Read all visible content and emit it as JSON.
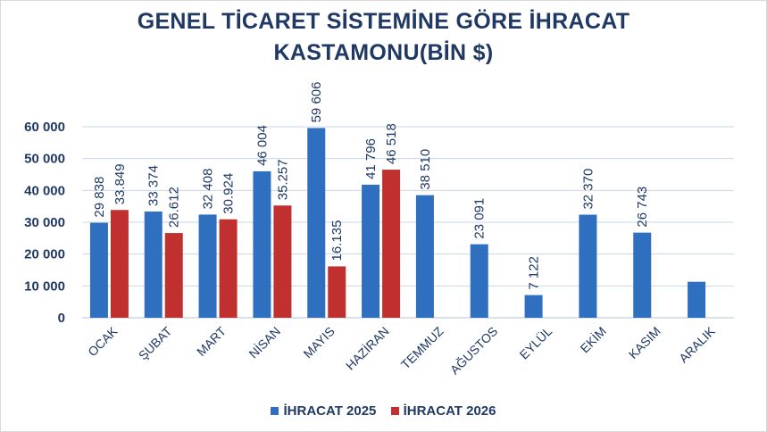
{
  "title_line1": "GENEL TİCARET SİSTEMİNE GÖRE İHRACAT",
  "title_line2": "KASTAMONU(BİN $)",
  "colors": {
    "series_2025": "#2f6fbf",
    "series_2026": "#c0302f",
    "text": "#1f3864",
    "grid": "#c9d6e6"
  },
  "chart_data": {
    "type": "bar",
    "title": "GENEL TİCARET SİSTEMİNE GÖRE İHRACAT KASTAMONU(BİN $)",
    "categories": [
      "OCAK",
      "ŞUBAT",
      "MART",
      "NİSAN",
      "MAYIS",
      "HAZİRAN",
      "TEMMUZ",
      "AĞUSTOS",
      "EYLÜL",
      "EKİM",
      "KASIM",
      "ARALIK"
    ],
    "series": [
      {
        "name": "İHRACAT 2025",
        "values": [
          29838,
          33374,
          32408,
          46004,
          59606,
          41796,
          38510,
          23091,
          7122,
          32370,
          26743,
          11300
        ],
        "labels": [
          "29 838",
          "33 374",
          "32 408",
          "46 004",
          "59 606",
          "41 796",
          "38 510",
          "23 091",
          "7 122",
          "32 370",
          "26 743",
          ""
        ]
      },
      {
        "name": "İHRACAT 2026",
        "values": [
          33849,
          26612,
          30924,
          35257,
          16135,
          46518,
          null,
          null,
          null,
          null,
          null,
          null
        ],
        "labels": [
          "33.849",
          "26.612",
          "30.924",
          "35.257",
          "16.135",
          "46 518",
          "",
          "",
          "",
          "",
          "",
          ""
        ]
      }
    ],
    "ylim": [
      0,
      60000
    ],
    "yticks": [
      0,
      10000,
      20000,
      30000,
      40000,
      50000,
      60000
    ],
    "ytick_labels": [
      "0",
      "10 000",
      "20 000",
      "30 000",
      "40 000",
      "50 000",
      "60 000"
    ],
    "grid": true,
    "legend_position": "bottom"
  }
}
